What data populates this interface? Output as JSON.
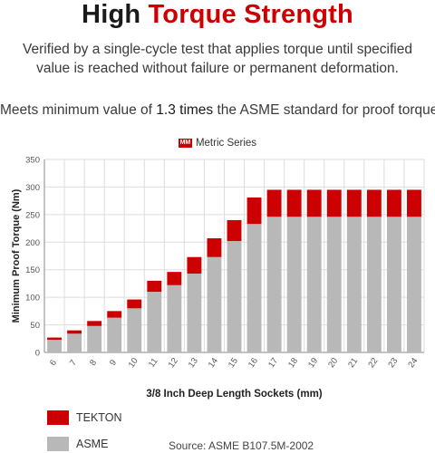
{
  "title": {
    "part1": "High",
    "part2": "Torque Strength"
  },
  "subtitle": "Verified by a single-cycle test that applies torque until specified value is reached without failure or permanent deformation.",
  "meets": {
    "prefix": "Meets minimum value of",
    "emphasis": "1.3 times",
    "suffix": "the ASME standard for proof torque."
  },
  "series_title": {
    "icon_text": "MM",
    "label": "Metric Series"
  },
  "source": "Source: ASME B107.5M-2002",
  "colors": {
    "tekton": "#cc0000",
    "asme": "#b8b8b8",
    "grid": "#dddddd",
    "axis": "#888888"
  },
  "chart_data": {
    "type": "bar",
    "stacked": true,
    "title": "Metric Series",
    "xlabel": "3/8 Inch Deep Length Sockets (mm)",
    "ylabel": "Minimum Proof Torque (Nm)",
    "ylim": [
      0,
      350
    ],
    "yticks": [
      0,
      50,
      100,
      150,
      200,
      250,
      300,
      350
    ],
    "grid": true,
    "categories": [
      "6",
      "7",
      "8",
      "9",
      "10",
      "11",
      "12",
      "13",
      "14",
      "15",
      "16",
      "17",
      "18",
      "19",
      "20",
      "21",
      "22",
      "23",
      "24"
    ],
    "series": [
      {
        "name": "ASME",
        "values": [
          23,
          34,
          48,
          63,
          80,
          110,
          122,
          143,
          173,
          202,
          233,
          246,
          246,
          246,
          246,
          246,
          246,
          246,
          246
        ]
      },
      {
        "name": "TEKTON",
        "values": [
          4,
          6,
          9,
          12,
          16,
          20,
          24,
          30,
          34,
          38,
          48,
          49,
          49,
          49,
          49,
          49,
          49,
          49,
          49
        ]
      }
    ],
    "legend": [
      "TEKTON",
      "ASME"
    ],
    "legend_position": "bottom-left"
  }
}
